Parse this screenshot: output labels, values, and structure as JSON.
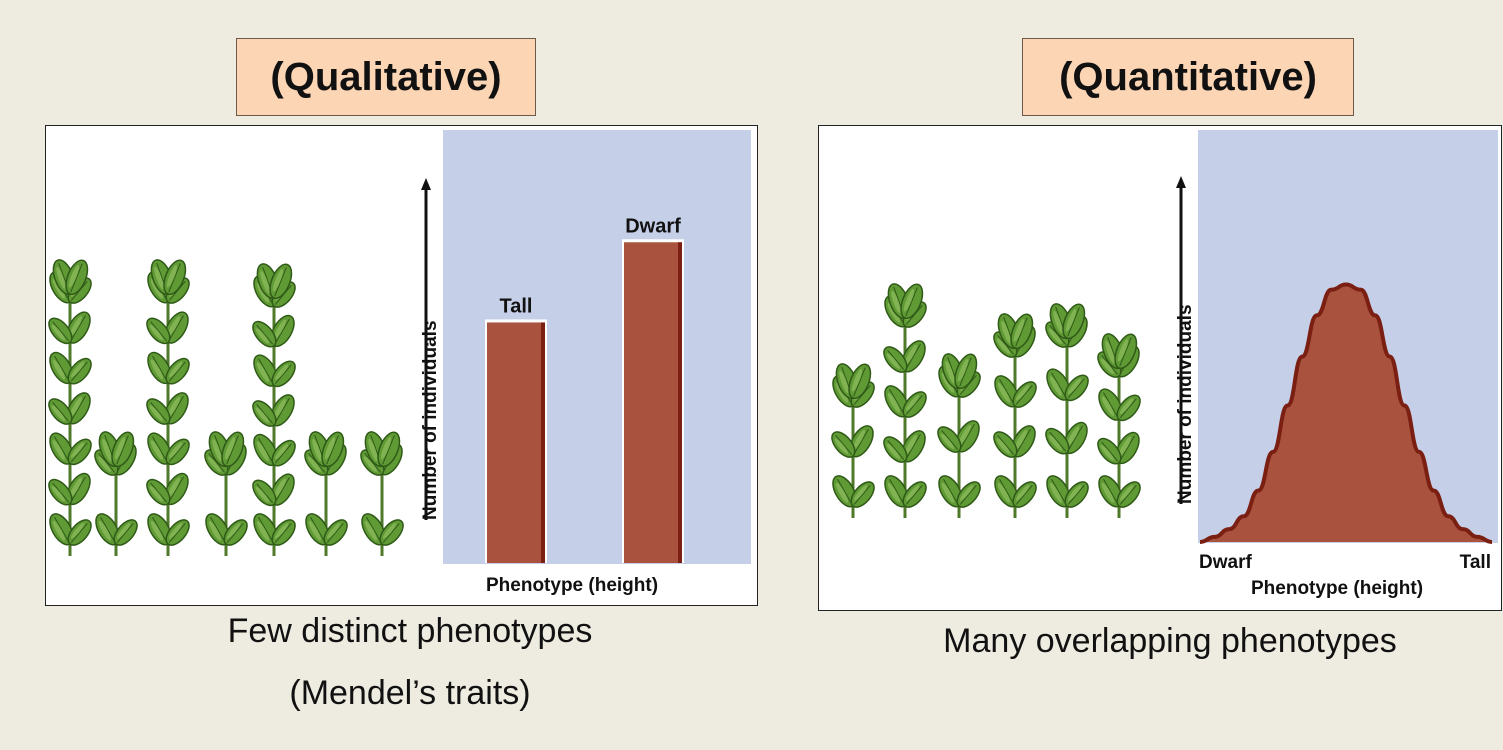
{
  "colors": {
    "background": "#eeebe1",
    "header_fill": "#fcd5b5",
    "plot_bg": "#c5cfe8",
    "bar_fill": "#a9533e",
    "bar_edge": "#7a1f12",
    "leaf": "#5f9a35"
  },
  "left": {
    "header": "(Qualitative)",
    "caption_line1": "Few distinct phenotypes",
    "caption_line2": "(Mendel’s traits)"
  },
  "right": {
    "header": "(Quantitative)",
    "caption": "Many overlapping phenotypes"
  },
  "chart_data": [
    {
      "type": "bar",
      "categories": [
        "Tall",
        "Dwarf"
      ],
      "values": [
        3,
        4
      ],
      "ylim": [
        0,
        5.4
      ],
      "xlabel": "Phenotype (height)",
      "ylabel": "Number of individuals",
      "grid": false,
      "legend": "none"
    },
    {
      "type": "area",
      "x_min_label": "Dwarf",
      "x_max_label": "Tall",
      "x": [
        0,
        0.05,
        0.1,
        0.15,
        0.2,
        0.25,
        0.3,
        0.35,
        0.4,
        0.45,
        0.5,
        0.55,
        0.6,
        0.65,
        0.7,
        0.75,
        0.8,
        0.85,
        0.9,
        0.95,
        1
      ],
      "values": [
        0.0,
        0.02,
        0.05,
        0.1,
        0.2,
        0.35,
        0.53,
        0.72,
        0.88,
        0.98,
        1.0,
        0.98,
        0.88,
        0.72,
        0.53,
        0.35,
        0.2,
        0.1,
        0.05,
        0.02,
        0.0
      ],
      "ylim": [
        0,
        1.6
      ],
      "xlabel": "Phenotype (height)",
      "ylabel": "Number of individuals",
      "grid": false,
      "legend": "none"
    }
  ]
}
